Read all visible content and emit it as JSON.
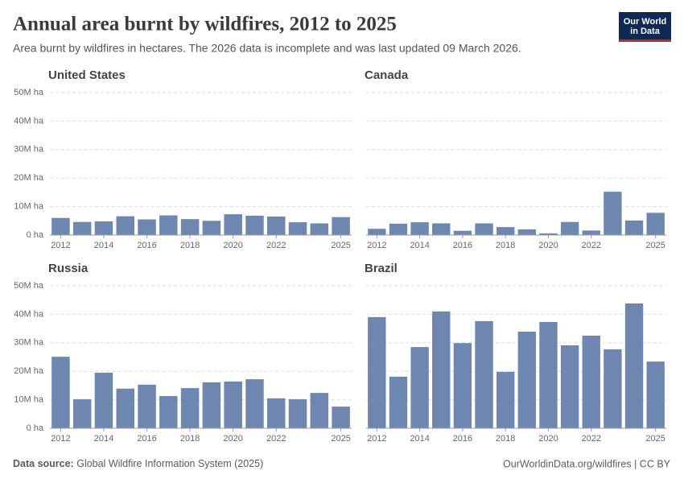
{
  "header": {
    "title": "Annual area burnt by wildfires, 2012 to 2025",
    "subtitle": "Area burnt by wildfires in hectares. The 2026 data is incomplete and was last updated 09 March 2026.",
    "logo": [
      "Our World",
      "in Data"
    ]
  },
  "chart_data": [
    {
      "type": "bar",
      "title": "United States",
      "color": "#6d87b1",
      "grid": true,
      "categories": [
        "2012",
        null,
        "2014",
        null,
        "2016",
        null,
        "2018",
        null,
        "2020",
        null,
        "2022",
        null,
        null,
        "2025"
      ],
      "values": [
        6000000,
        4600000,
        4800000,
        6600000,
        5500000,
        6900000,
        5600000,
        5000000,
        7300000,
        6800000,
        6500000,
        4500000,
        4100000,
        6300000
      ],
      "ylim": [
        0,
        50000000
      ],
      "yticks": [
        {
          "value": 0,
          "label": "0 ha"
        },
        {
          "value": 10000000,
          "label": "10M ha"
        },
        {
          "value": 20000000,
          "label": "20M ha"
        },
        {
          "value": 30000000,
          "label": "30M ha"
        },
        {
          "value": 40000000,
          "label": "40M ha"
        },
        {
          "value": 50000000,
          "label": "50M ha"
        }
      ]
    },
    {
      "type": "bar",
      "title": "Canada",
      "color": "#6d87b1",
      "grid": true,
      "categories": [
        "2012",
        null,
        "2014",
        null,
        "2016",
        null,
        "2018",
        null,
        "2020",
        null,
        "2022",
        null,
        null,
        "2025"
      ],
      "values": [
        2200000,
        4000000,
        4500000,
        4100000,
        1500000,
        4100000,
        2800000,
        2000000,
        600000,
        4600000,
        1600000,
        15200000,
        5100000,
        7800000
      ]
    },
    {
      "type": "bar",
      "title": "Russia",
      "color": "#6d87b1",
      "grid": true,
      "categories": [
        "2012",
        null,
        "2014",
        null,
        "2016",
        null,
        "2018",
        null,
        "2020",
        null,
        "2022",
        null,
        null,
        "2025"
      ],
      "values": [
        25100000,
        10200000,
        19500000,
        13900000,
        15300000,
        11300000,
        14100000,
        16100000,
        16400000,
        17200000,
        10500000,
        10200000,
        12400000,
        7600000
      ],
      "ylim": [
        0,
        50000000
      ],
      "yticks": [
        {
          "value": 0,
          "label": "0 ha"
        },
        {
          "value": 10000000,
          "label": "10M ha"
        },
        {
          "value": 20000000,
          "label": "20M ha"
        },
        {
          "value": 30000000,
          "label": "30M ha"
        },
        {
          "value": 40000000,
          "label": "40M ha"
        },
        {
          "value": 50000000,
          "label": "50M ha"
        }
      ]
    },
    {
      "type": "bar",
      "title": "Brazil",
      "color": "#6d87b1",
      "grid": true,
      "categories": [
        "2012",
        null,
        "2014",
        null,
        "2016",
        null,
        "2018",
        null,
        "2020",
        null,
        "2022",
        null,
        null,
        "2025"
      ],
      "values": [
        39000000,
        18100000,
        28500000,
        41000000,
        29900000,
        37600000,
        19800000,
        33900000,
        37300000,
        29100000,
        32500000,
        27700000,
        43800000,
        23400000
      ]
    }
  ],
  "footer": {
    "source_label": "Data source:",
    "source": "Global Wildfire Information System (2025)",
    "url": "OurWorldinData.org/wildfires | CC BY"
  }
}
